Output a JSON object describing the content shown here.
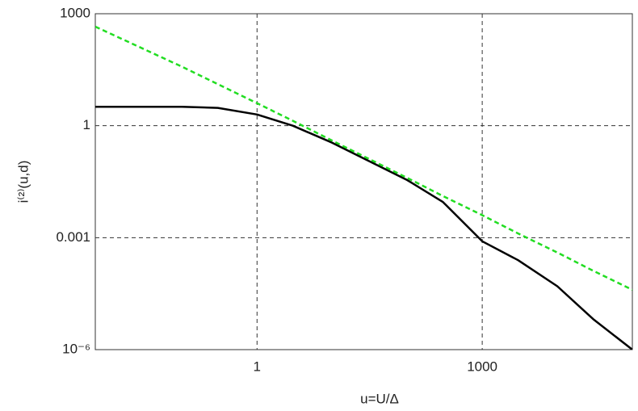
{
  "chart_data": {
    "type": "line",
    "x_label": "u=U/Δ",
    "y_label": "i⁽²⁾(u,d)",
    "log_x": true,
    "log_y": true,
    "grid": true,
    "xlim": [
      0.007,
      100000
    ],
    "ylim": [
      1e-06,
      1000
    ],
    "xticks": [
      1,
      1000
    ],
    "yticks": [
      1000,
      1,
      0.001,
      {
        "value": 1e-06,
        "label": "10⁻⁶"
      }
    ],
    "x": [
      0.007,
      0.1,
      0.3,
      1,
      3,
      10,
      100,
      300,
      1000,
      3000,
      10000,
      30000,
      100000
    ],
    "series": [
      {
        "color": "#000000",
        "dash": false,
        "values": [
          3.2,
          3.2,
          3.0,
          2.0,
          1.0,
          0.35,
          0.035,
          0.009,
          0.0008,
          0.00025,
          5e-05,
          6.6e-06,
          1e-06
        ]
      },
      {
        "color": "#22dd22",
        "dash": true,
        "values": [
          450,
          38,
          13,
          4,
          1.35,
          0.4,
          0.04,
          0.013,
          0.004,
          0.0013,
          0.0004,
          0.00013,
          4e-05
        ]
      }
    ]
  }
}
